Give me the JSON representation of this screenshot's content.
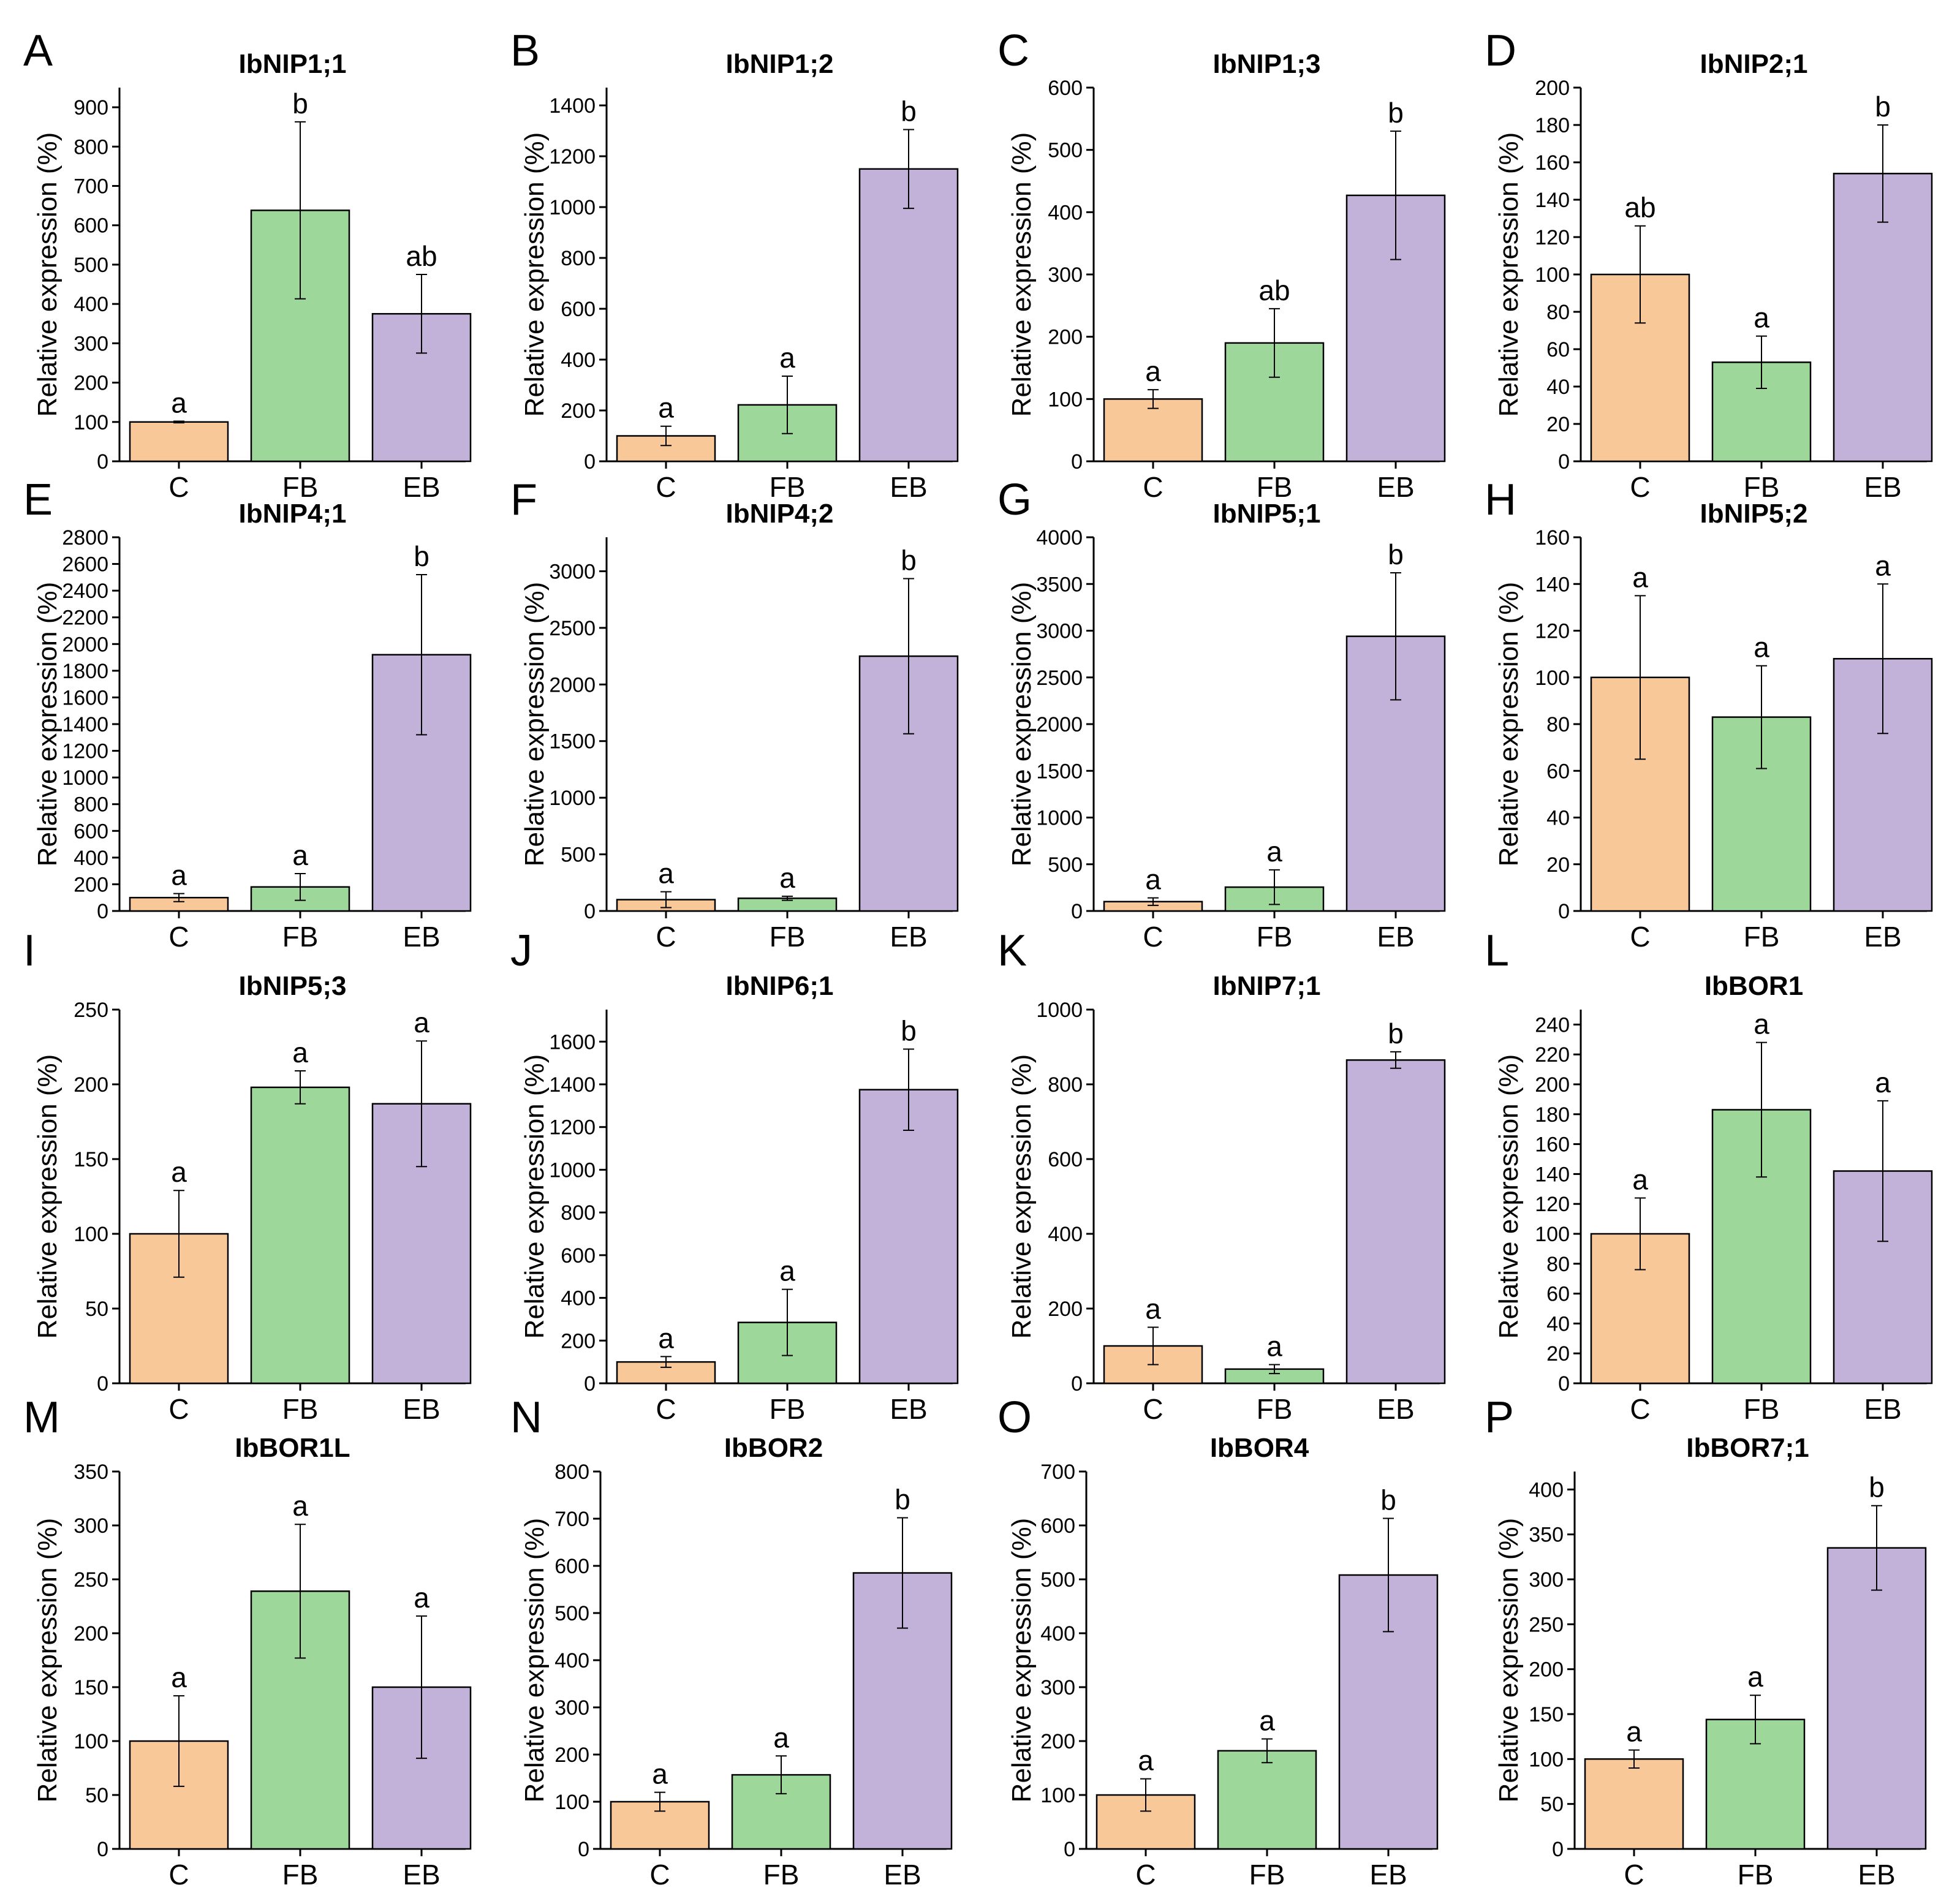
{
  "figure": {
    "colors": {
      "C": "#f9c898",
      "FB": "#9dd89a",
      "EB": "#c2b1d8",
      "axis": "#000000"
    }
  },
  "chart_data": [
    {
      "panel": "A",
      "type": "bar",
      "title": "IbNIP1;1",
      "xlabel": "",
      "ylabel": "Relative expression (%)",
      "categories": [
        "C",
        "FB",
        "EB"
      ],
      "ylim": [
        0,
        950
      ],
      "yticks": [
        0,
        100,
        200,
        300,
        400,
        500,
        600,
        700,
        800,
        900
      ],
      "values": [
        100,
        638,
        375
      ],
      "errors": [
        2,
        225,
        100
      ],
      "letters": [
        "a",
        "b",
        "ab"
      ]
    },
    {
      "panel": "B",
      "type": "bar",
      "title": "IbNIP1;2",
      "xlabel": "",
      "ylabel": "Relative expression (%)",
      "categories": [
        "C",
        "FB",
        "EB"
      ],
      "ylim": [
        0,
        1470
      ],
      "yticks": [
        0,
        200,
        400,
        600,
        800,
        1000,
        1200,
        1400
      ],
      "values": [
        100,
        222,
        1150
      ],
      "errors": [
        38,
        113,
        155
      ],
      "letters": [
        "a",
        "a",
        "b"
      ]
    },
    {
      "panel": "C",
      "type": "bar",
      "title": "IbNIP1;3",
      "xlabel": "",
      "ylabel": "Relative expression (%)",
      "categories": [
        "C",
        "FB",
        "EB"
      ],
      "ylim": [
        0,
        600
      ],
      "yticks": [
        0,
        100,
        200,
        300,
        400,
        500,
        600
      ],
      "values": [
        100,
        190,
        427
      ],
      "errors": [
        15,
        55,
        103
      ],
      "letters": [
        "a",
        "ab",
        "b"
      ]
    },
    {
      "panel": "D",
      "type": "bar",
      "title": "IbNIP2;1",
      "xlabel": "",
      "ylabel": "Relative expression (%)",
      "categories": [
        "C",
        "FB",
        "EB"
      ],
      "ylim": [
        0,
        200
      ],
      "yticks": [
        0,
        20,
        40,
        60,
        80,
        100,
        120,
        140,
        160,
        180,
        200
      ],
      "values": [
        100,
        53,
        154
      ],
      "errors": [
        26,
        14,
        26
      ],
      "letters": [
        "ab",
        "a",
        "b"
      ]
    },
    {
      "panel": "E",
      "type": "bar",
      "title": "IbNIP4;1",
      "xlabel": "",
      "ylabel": "Relative expression (%)",
      "categories": [
        "C",
        "FB",
        "EB"
      ],
      "ylim": [
        0,
        2800
      ],
      "yticks": [
        0,
        200,
        400,
        600,
        800,
        1000,
        1200,
        1400,
        1600,
        1800,
        2000,
        2200,
        2400,
        2600,
        2800
      ],
      "values": [
        100,
        180,
        1920
      ],
      "errors": [
        30,
        100,
        600
      ],
      "letters": [
        "a",
        "a",
        "b"
      ]
    },
    {
      "panel": "F",
      "type": "bar",
      "title": "IbNIP4;2",
      "xlabel": "",
      "ylabel": "Relative expression (%)",
      "categories": [
        "C",
        "FB",
        "EB"
      ],
      "ylim": [
        0,
        3300
      ],
      "yticks": [
        0,
        500,
        1000,
        1500,
        2000,
        2500,
        3000
      ],
      "values": [
        100,
        112,
        2250
      ],
      "errors": [
        70,
        18,
        685
      ],
      "letters": [
        "a",
        "a",
        "b"
      ]
    },
    {
      "panel": "G",
      "type": "bar",
      "title": "IbNIP5;1",
      "xlabel": "",
      "ylabel": "Relative expression (%)",
      "categories": [
        "C",
        "FB",
        "EB"
      ],
      "ylim": [
        0,
        4000
      ],
      "yticks": [
        0,
        500,
        1000,
        1500,
        2000,
        2500,
        3000,
        3500,
        4000
      ],
      "values": [
        100,
        255,
        2940
      ],
      "errors": [
        40,
        185,
        680
      ],
      "letters": [
        "a",
        "a",
        "b"
      ]
    },
    {
      "panel": "H",
      "type": "bar",
      "title": "IbNIP5;2",
      "xlabel": "",
      "ylabel": "Relative expression (%)",
      "categories": [
        "C",
        "FB",
        "EB"
      ],
      "ylim": [
        0,
        160
      ],
      "yticks": [
        0,
        20,
        40,
        60,
        80,
        100,
        120,
        140,
        160
      ],
      "values": [
        100,
        83,
        108
      ],
      "errors": [
        35,
        22,
        32
      ],
      "letters": [
        "a",
        "a",
        "a"
      ]
    },
    {
      "panel": "I",
      "type": "bar",
      "title": "IbNIP5;3",
      "xlabel": "",
      "ylabel": "Relative expression (%)",
      "categories": [
        "C",
        "FB",
        "EB"
      ],
      "ylim": [
        0,
        250
      ],
      "yticks": [
        0,
        50,
        100,
        150,
        200,
        250
      ],
      "values": [
        100,
        198,
        187
      ],
      "errors": [
        29,
        11,
        42
      ],
      "letters": [
        "a",
        "a",
        "a"
      ]
    },
    {
      "panel": "J",
      "type": "bar",
      "title": "IbNIP6;1",
      "xlabel": "",
      "ylabel": "Relative expression (%)",
      "categories": [
        "C",
        "FB",
        "EB"
      ],
      "ylim": [
        0,
        1750
      ],
      "yticks": [
        0,
        200,
        400,
        600,
        800,
        1000,
        1200,
        1400,
        1600
      ],
      "values": [
        100,
        285,
        1375
      ],
      "errors": [
        25,
        155,
        190
      ],
      "letters": [
        "a",
        "a",
        "b"
      ]
    },
    {
      "panel": "K",
      "type": "bar",
      "title": "IbNIP7;1",
      "xlabel": "",
      "ylabel": "Relative expression (%)",
      "categories": [
        "C",
        "FB",
        "EB"
      ],
      "ylim": [
        0,
        1000
      ],
      "yticks": [
        0,
        200,
        400,
        600,
        800,
        1000
      ],
      "values": [
        100,
        38,
        865
      ],
      "errors": [
        50,
        12,
        22
      ],
      "letters": [
        "a",
        "a",
        "b"
      ]
    },
    {
      "panel": "L",
      "type": "bar",
      "title": "IbBOR1",
      "xlabel": "",
      "ylabel": "Relative expression (%)",
      "categories": [
        "C",
        "FB",
        "EB"
      ],
      "ylim": [
        0,
        250
      ],
      "yticks": [
        0,
        20,
        40,
        60,
        80,
        100,
        120,
        140,
        160,
        180,
        200,
        220,
        240
      ],
      "values": [
        100,
        183,
        142
      ],
      "errors": [
        24,
        45,
        47
      ],
      "letters": [
        "a",
        "a",
        "a"
      ]
    },
    {
      "panel": "M",
      "type": "bar",
      "title": "IbBOR1L",
      "xlabel": "",
      "ylabel": "Relative expression (%)",
      "categories": [
        "C",
        "FB",
        "EB"
      ],
      "ylim": [
        0,
        350
      ],
      "yticks": [
        0,
        50,
        100,
        150,
        200,
        250,
        300,
        350
      ],
      "values": [
        100,
        239,
        150
      ],
      "errors": [
        42,
        62,
        66
      ],
      "letters": [
        "a",
        "a",
        "a"
      ]
    },
    {
      "panel": "N",
      "type": "bar",
      "title": "IbBOR2",
      "xlabel": "",
      "ylabel": "Relative expression (%)",
      "categories": [
        "C",
        "FB",
        "EB"
      ],
      "ylim": [
        0,
        800
      ],
      "yticks": [
        0,
        100,
        200,
        300,
        400,
        500,
        600,
        700,
        800
      ],
      "values": [
        100,
        157,
        585
      ],
      "errors": [
        20,
        40,
        117
      ],
      "letters": [
        "a",
        "a",
        "b"
      ]
    },
    {
      "panel": "O",
      "type": "bar",
      "title": "IbBOR4",
      "xlabel": "",
      "ylabel": "Relative expression (%)",
      "categories": [
        "C",
        "FB",
        "EB"
      ],
      "ylim": [
        0,
        700
      ],
      "yticks": [
        0,
        100,
        200,
        300,
        400,
        500,
        600,
        700
      ],
      "values": [
        100,
        182,
        508
      ],
      "errors": [
        30,
        22,
        105
      ],
      "letters": [
        "a",
        "a",
        "b"
      ]
    },
    {
      "panel": "P",
      "type": "bar",
      "title": "IbBOR7;1",
      "xlabel": "",
      "ylabel": "Relative expression (%)",
      "categories": [
        "C",
        "FB",
        "EB"
      ],
      "ylim": [
        0,
        420
      ],
      "yticks": [
        0,
        50,
        100,
        150,
        200,
        250,
        300,
        350,
        400
      ],
      "values": [
        100,
        144,
        335
      ],
      "errors": [
        10,
        27,
        47
      ],
      "letters": [
        "a",
        "a",
        "b"
      ]
    }
  ]
}
